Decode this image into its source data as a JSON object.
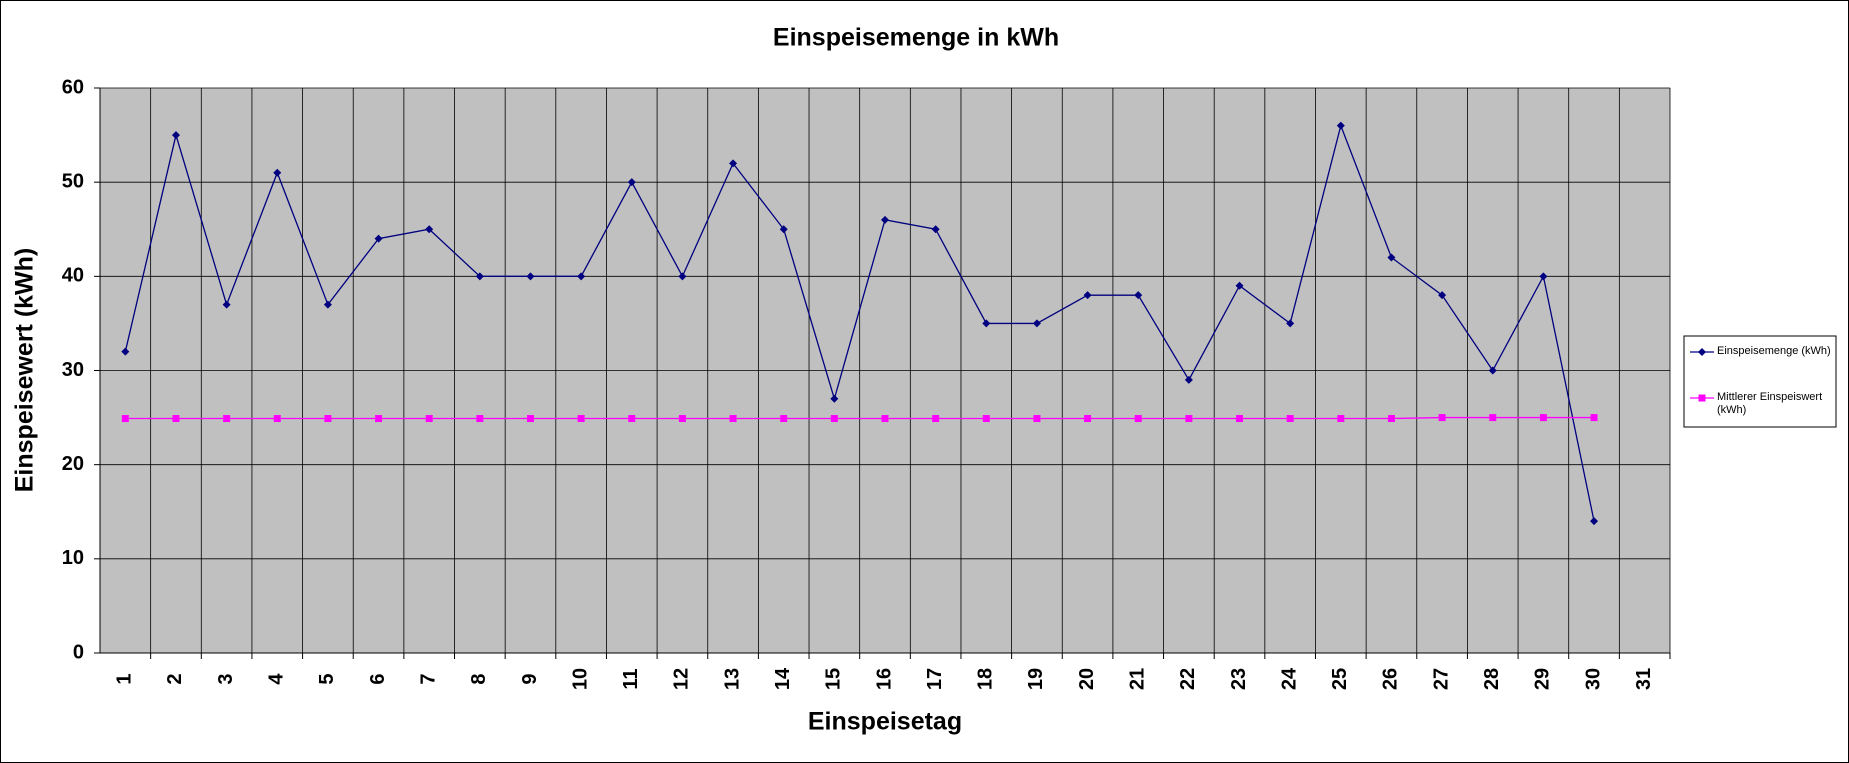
{
  "chart_data": {
    "type": "line",
    "title": "Einspeisemenge in kWh",
    "xlabel": "Einspeisetag",
    "ylabel": "Einspeisewert  (kWh)",
    "categories": [
      "1",
      "2",
      "3",
      "4",
      "5",
      "6",
      "7",
      "8",
      "9",
      "10",
      "11",
      "12",
      "13",
      "14",
      "15",
      "16",
      "17",
      "18",
      "19",
      "20",
      "21",
      "22",
      "23",
      "24",
      "25",
      "26",
      "27",
      "28",
      "29",
      "30",
      "31"
    ],
    "series": [
      {
        "name": "Einspeisemenge (kWh)",
        "color": "#000080",
        "marker": "diamond",
        "values": [
          32,
          55,
          37,
          51,
          37,
          44,
          45,
          40,
          40,
          40,
          50,
          40,
          52,
          45,
          27,
          46,
          45,
          35,
          35,
          38,
          38,
          29,
          39,
          35,
          56,
          42,
          38,
          30,
          40,
          14,
          null
        ]
      },
      {
        "name": "Mittlerer Einspeiswert (kWh)",
        "color": "#ff00ff",
        "marker": "square",
        "values": [
          24.9,
          24.9,
          24.9,
          24.9,
          24.9,
          24.9,
          24.9,
          24.9,
          24.9,
          24.9,
          24.9,
          24.9,
          24.9,
          24.9,
          24.9,
          24.9,
          24.9,
          24.9,
          24.9,
          24.9,
          24.9,
          24.9,
          24.9,
          24.9,
          24.9,
          24.9,
          25,
          25,
          25,
          25,
          null
        ]
      }
    ],
    "ylim": [
      0,
      60
    ],
    "yticks": [
      0,
      10,
      20,
      30,
      40,
      50,
      60
    ],
    "grid": true,
    "xgrid": true,
    "legend": "right",
    "plot_background": "#c0c0c0"
  }
}
